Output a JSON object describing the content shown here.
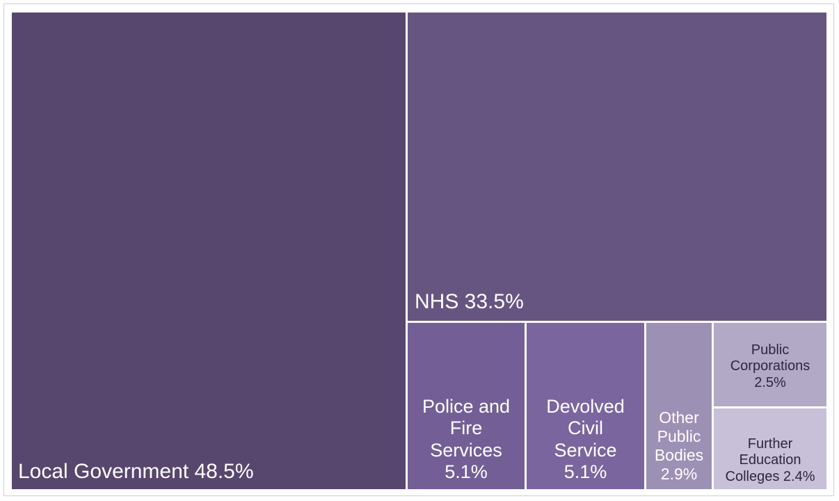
{
  "chart_data": {
    "type": "treemap",
    "title": "",
    "unit": "%",
    "items": [
      {
        "name": "Local Government",
        "value": 48.5,
        "color": "#57476e"
      },
      {
        "name": "NHS",
        "value": 33.5,
        "color": "#665581"
      },
      {
        "name": "Police and Fire Services",
        "value": 5.1,
        "color": "#735f96"
      },
      {
        "name": "Devolved Civil Service",
        "value": 5.1,
        "color": "#7b659e"
      },
      {
        "name": "Other Public Bodies",
        "value": 2.9,
        "color": "#9d90b5"
      },
      {
        "name": "Public Corporations",
        "value": 2.5,
        "color": "#b2a9c7"
      },
      {
        "name": "Further Education Colleges",
        "value": 2.4,
        "color": "#c7c0d8"
      }
    ]
  },
  "labels": {
    "local_government": "Local Government 48.5%",
    "nhs": "NHS  33.5%",
    "police_fire": [
      "Police and",
      "Fire",
      "Services",
      "5.1%"
    ],
    "devolved": [
      "Devolved",
      "Civil",
      "Service",
      "5.1%"
    ],
    "other_bodies": [
      "Other",
      "Public",
      "Bodies",
      "2.9%"
    ],
    "public_corp": [
      "Public",
      "Corporations",
      "2.5%"
    ],
    "further_ed": [
      "Further",
      "Education",
      "Colleges  2.4%"
    ]
  }
}
